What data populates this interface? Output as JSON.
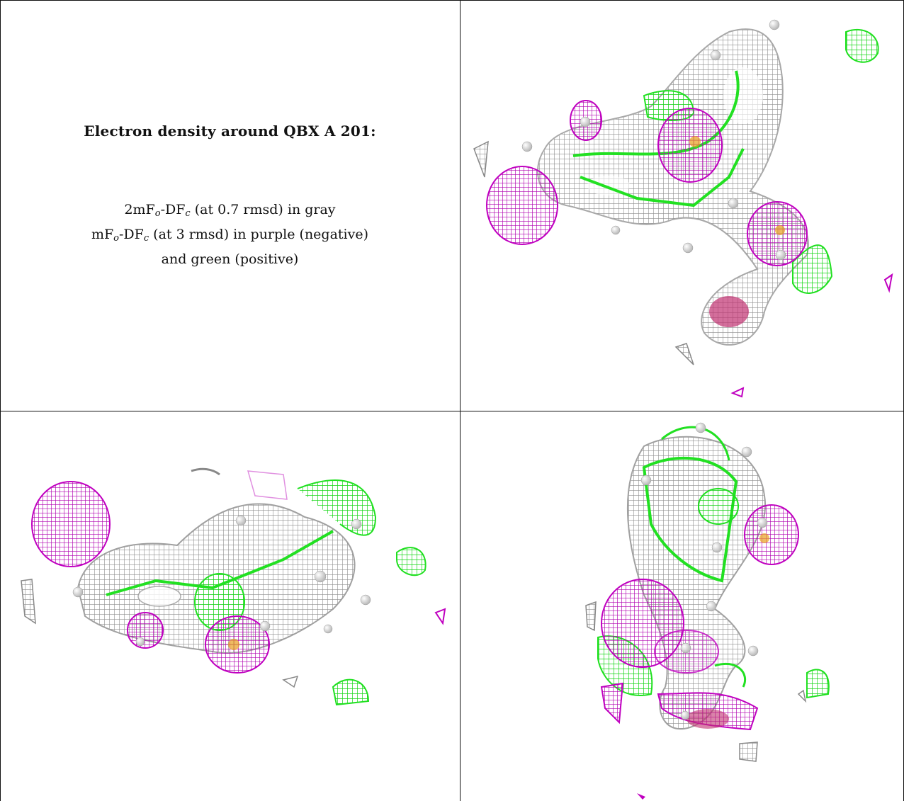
{
  "figure": {
    "title": "Electron density around QBX A 201:",
    "legend_lines": [
      {
        "before": "2mF",
        "sub1": "o",
        "mid": "-DF",
        "sub2": "c",
        "after": " (at 0.7 rmsd) in gray"
      },
      {
        "before": "mF",
        "sub1": "o",
        "mid": "-DF",
        "sub2": "c",
        "after": " (at 3 rmsd) in purple (negative)"
      },
      {
        "before": "",
        "sub1": "",
        "mid": "",
        "sub2": "",
        "after": "and green (positive)"
      }
    ]
  },
  "colors": {
    "gray_mesh": "#9a9a9a",
    "purple_mesh": "#c000c0",
    "green_mesh": "#22e022",
    "atom_white": "#f0f0f0",
    "red_core": "#d0204a",
    "orange_core": "#e8a020"
  },
  "panels": [
    {
      "view": "top-right"
    },
    {
      "view": "bottom-left"
    },
    {
      "view": "bottom-right"
    }
  ]
}
